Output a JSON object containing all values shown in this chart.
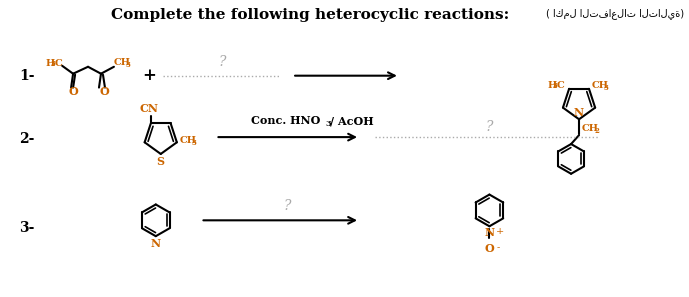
{
  "title": "Complete the following heterocyclic reactions:",
  "title_arabic": "( اكمل التفاعلات التالية)",
  "title_fontsize": 11,
  "bg_color": "#ffffff",
  "text_color": "#000000",
  "struct_color": "#000000",
  "label_color": "#cc6600",
  "question_color": "#aaaaaa",
  "dotted_color": "#aaaaaa",
  "arrow_color": "#000000",
  "conc_label": "Conc. HNO 3 / AcOH"
}
